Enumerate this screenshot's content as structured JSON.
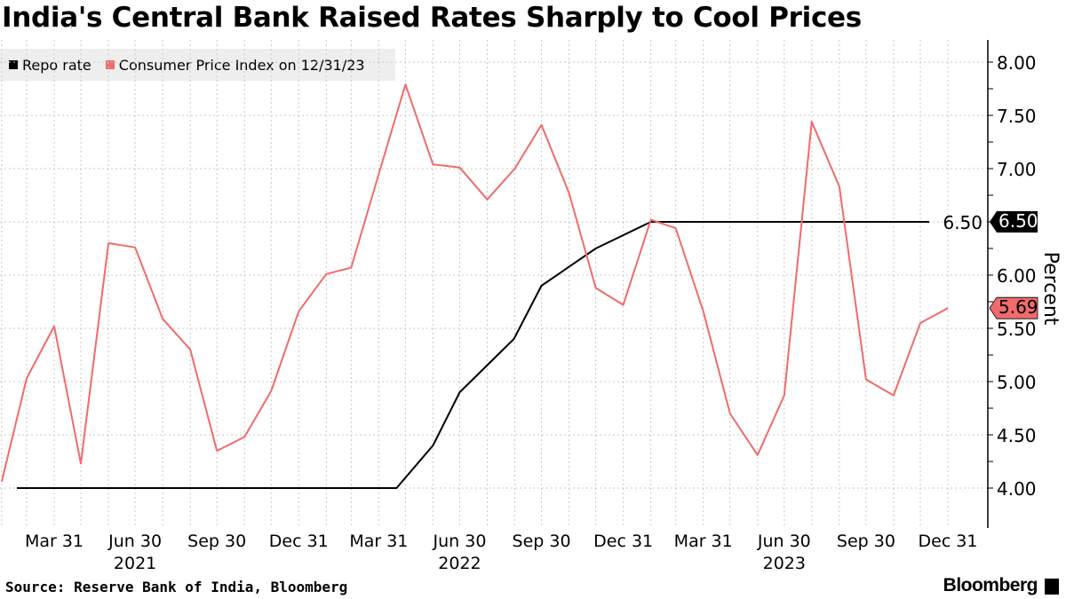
{
  "title": "India's Central Bank Raised Rates Sharply to Cool Prices",
  "source": "Source: Reserve Bank of India, Bloomberg",
  "logo": "Bloomberg",
  "chart_data": {
    "type": "line",
    "title": "India's Central Bank Raised Rates Sharply to Cool Prices",
    "ylabel": "Percent",
    "ylim": [
      3.75,
      8.2
    ],
    "yticks": [
      "4.00",
      "4.50",
      "5.00",
      "5.50",
      "6.00",
      "6.50",
      "7.00",
      "7.50",
      "8.00"
    ],
    "y_axis_side": "right",
    "grid": true,
    "legend_position": "top-left",
    "xticks": [
      {
        "date": "2021-03-31",
        "label": "Mar 31"
      },
      {
        "date": "2021-06-30",
        "label": "Jun 30"
      },
      {
        "date": "2021-09-30",
        "label": "Sep 30"
      },
      {
        "date": "2021-12-31",
        "label": "Dec 31"
      },
      {
        "date": "2022-03-31",
        "label": "Mar 31"
      },
      {
        "date": "2022-06-30",
        "label": "Jun 30"
      },
      {
        "date": "2022-09-30",
        "label": "Sep 30"
      },
      {
        "date": "2022-12-31",
        "label": "Dec 31"
      },
      {
        "date": "2023-03-31",
        "label": "Mar 31"
      },
      {
        "date": "2023-06-30",
        "label": "Jun 30"
      },
      {
        "date": "2023-09-30",
        "label": "Sep 30"
      },
      {
        "date": "2023-12-31",
        "label": "Dec 31"
      }
    ],
    "year_labels": [
      {
        "date": "2021-06-30",
        "label": "2021"
      },
      {
        "date": "2022-06-30",
        "label": "2022"
      },
      {
        "date": "2023-06-30",
        "label": "2023"
      }
    ],
    "series": [
      {
        "name": "Repo rate",
        "color": "#000000",
        "last_value_label": "6.50",
        "points": [
          [
            "2021-02-17",
            4.0
          ],
          [
            "2022-04-20",
            4.0
          ],
          [
            "2022-05-31",
            4.4
          ],
          [
            "2022-06-30",
            4.9
          ],
          [
            "2022-08-30",
            5.4
          ],
          [
            "2022-09-30",
            5.9
          ],
          [
            "2022-11-30",
            6.25
          ],
          [
            "2023-01-31",
            6.5
          ],
          [
            "2023-12-10",
            6.5
          ]
        ]
      },
      {
        "name": "Consumer Price Index on 12/31/23",
        "color": "#f06b6b",
        "last_value_label": "5.69",
        "points": [
          [
            "2021-01-31",
            4.06
          ],
          [
            "2021-02-28",
            5.03
          ],
          [
            "2021-03-31",
            5.52
          ],
          [
            "2021-04-30",
            4.23
          ],
          [
            "2021-05-31",
            6.3
          ],
          [
            "2021-06-30",
            6.26
          ],
          [
            "2021-07-31",
            5.59
          ],
          [
            "2021-08-31",
            5.3
          ],
          [
            "2021-09-30",
            4.35
          ],
          [
            "2021-10-31",
            4.48
          ],
          [
            "2021-11-30",
            4.91
          ],
          [
            "2021-12-31",
            5.66
          ],
          [
            "2022-01-31",
            6.01
          ],
          [
            "2022-02-28",
            6.07
          ],
          [
            "2022-03-31",
            6.95
          ],
          [
            "2022-04-30",
            7.79
          ],
          [
            "2022-05-31",
            7.04
          ],
          [
            "2022-06-30",
            7.01
          ],
          [
            "2022-07-31",
            6.71
          ],
          [
            "2022-08-31",
            7.0
          ],
          [
            "2022-09-30",
            7.41
          ],
          [
            "2022-10-31",
            6.77
          ],
          [
            "2022-11-30",
            5.88
          ],
          [
            "2022-12-31",
            5.72
          ],
          [
            "2023-01-31",
            6.52
          ],
          [
            "2023-02-28",
            6.44
          ],
          [
            "2023-03-31",
            5.66
          ],
          [
            "2023-04-30",
            4.7
          ],
          [
            "2023-05-31",
            4.31
          ],
          [
            "2023-06-30",
            4.87
          ],
          [
            "2023-07-31",
            7.44
          ],
          [
            "2023-08-31",
            6.83
          ],
          [
            "2023-09-30",
            5.02
          ],
          [
            "2023-10-31",
            4.87
          ],
          [
            "2023-11-30",
            5.55
          ],
          [
            "2023-12-31",
            5.69
          ]
        ]
      }
    ]
  }
}
